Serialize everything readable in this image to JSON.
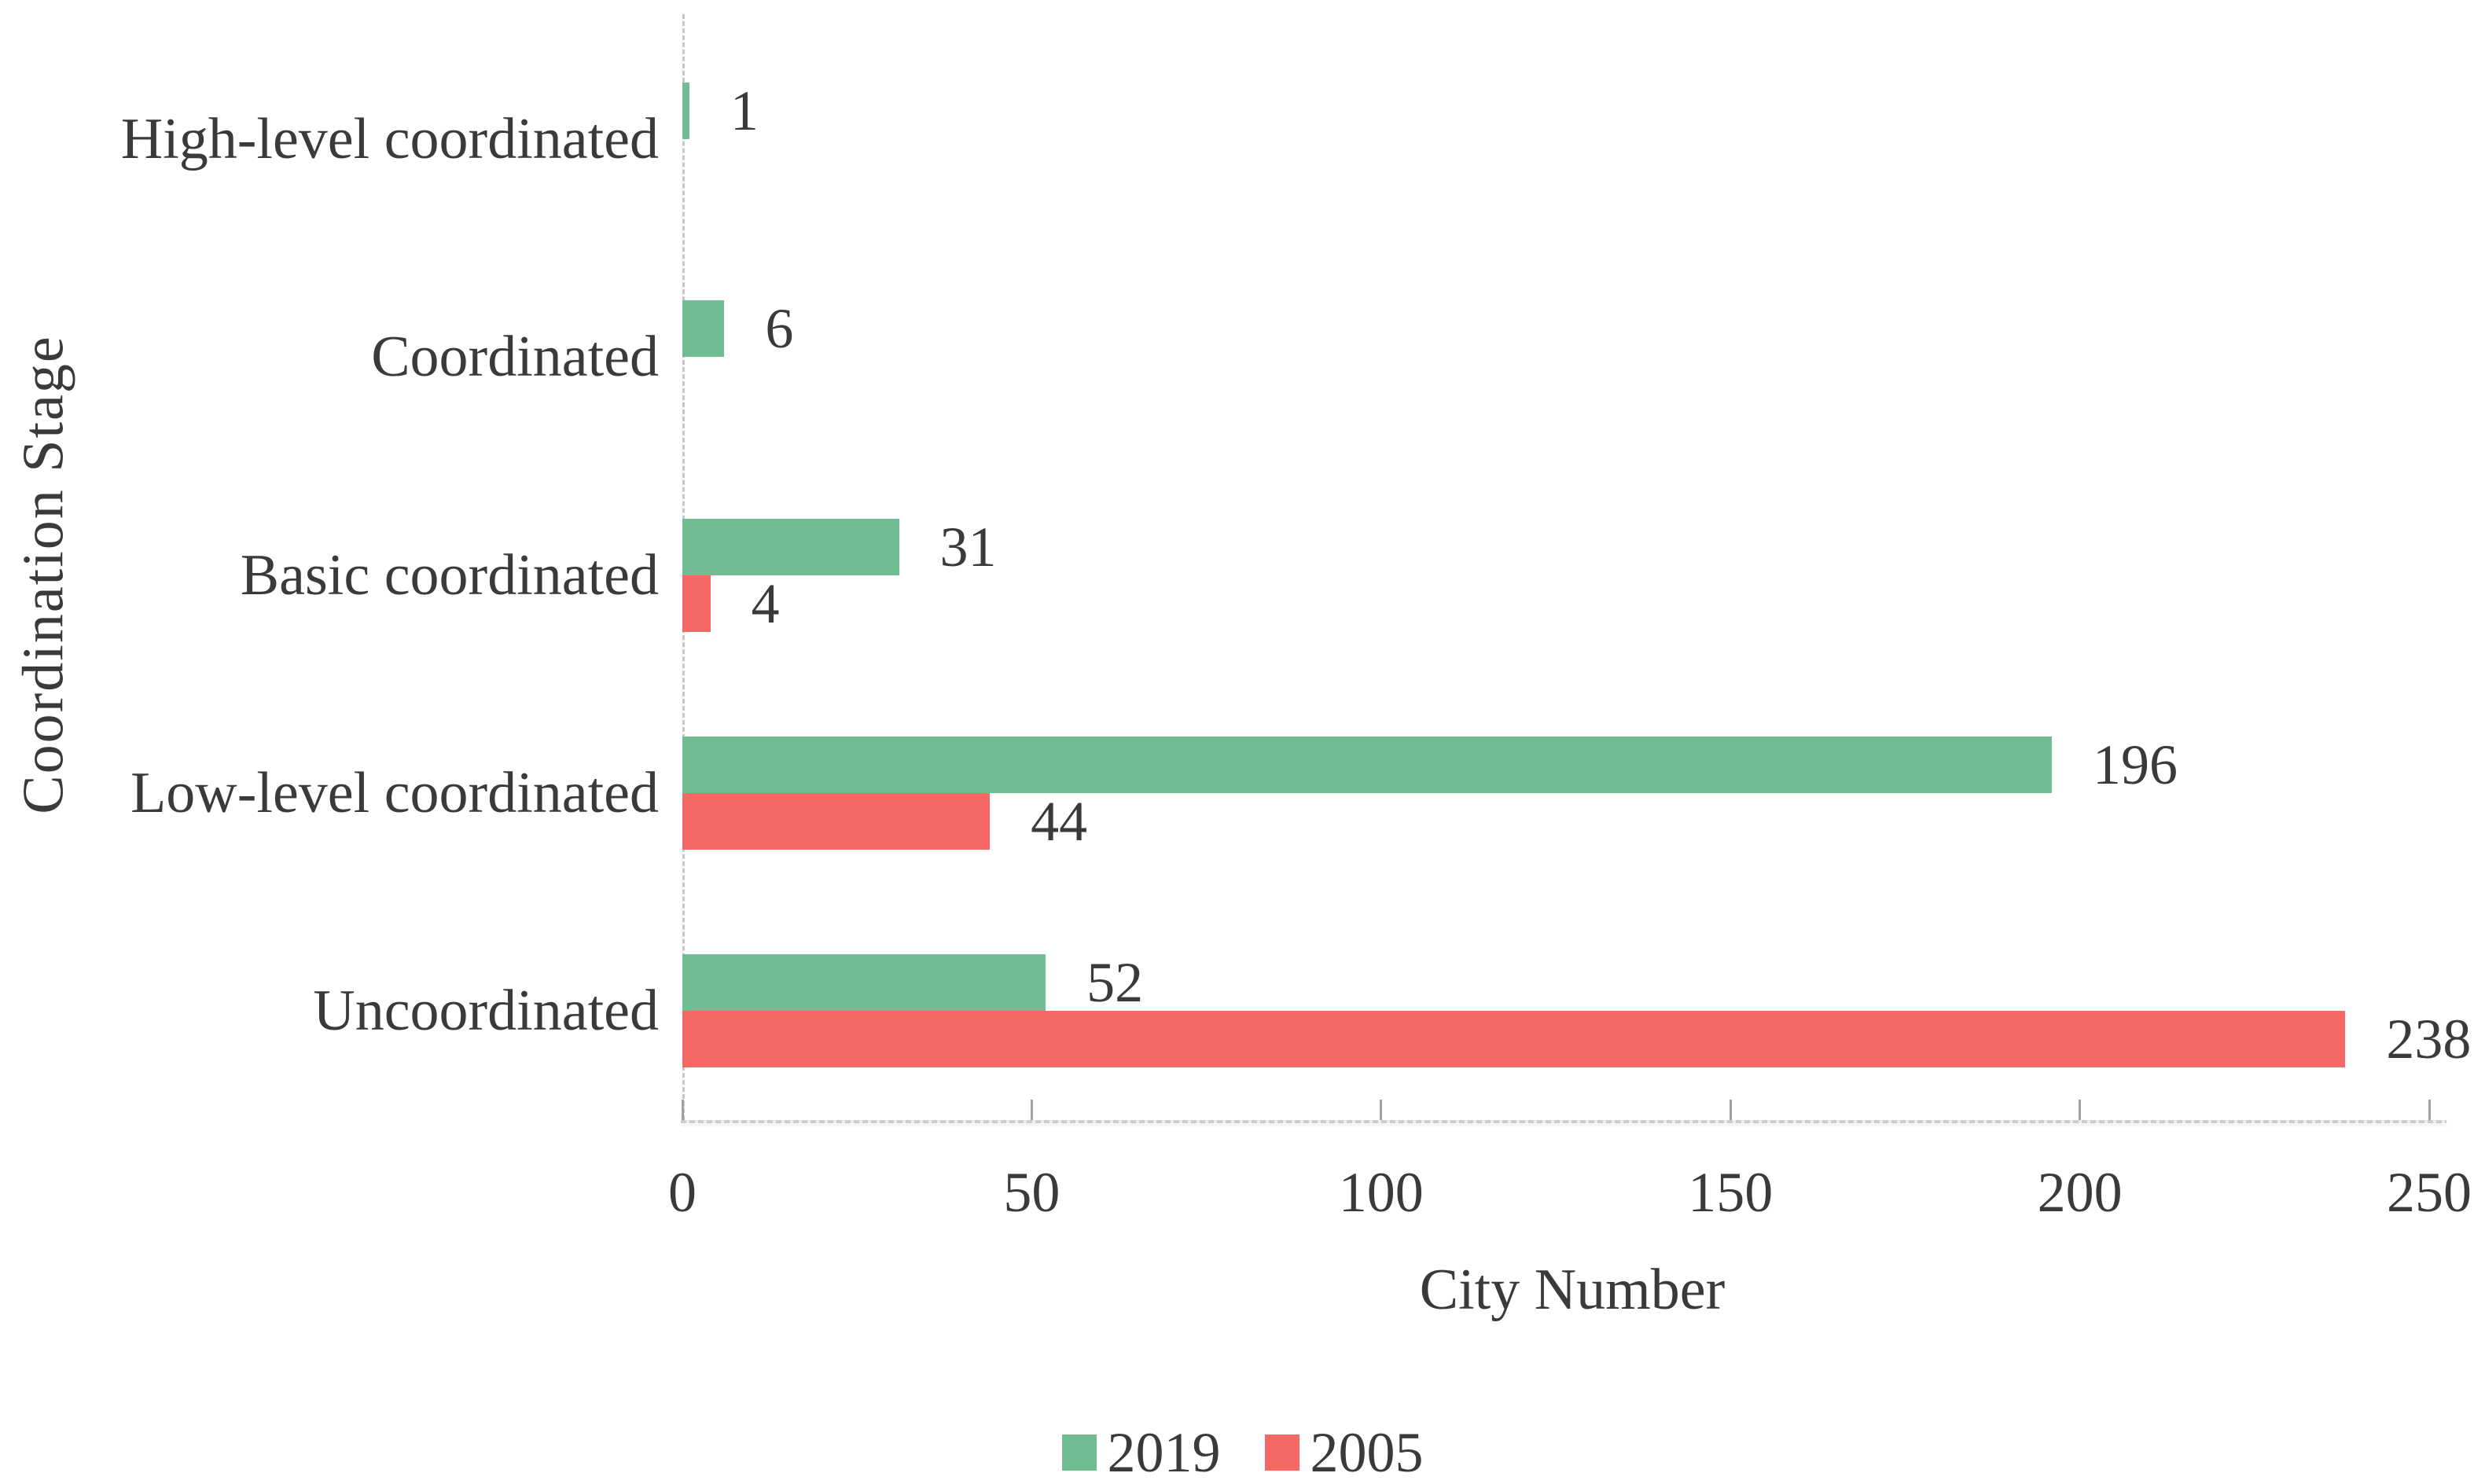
{
  "chart_data": {
    "type": "bar",
    "orientation": "horizontal",
    "title": "",
    "categories": [
      "High-level coordinated",
      "Coordinated",
      "Basic coordinated",
      "Low-level coordinated",
      "Uncoordinated"
    ],
    "series": [
      {
        "name": "2019",
        "color": "#6fbd90",
        "values": [
          1,
          6,
          31,
          196,
          52
        ]
      },
      {
        "name": "2005",
        "color": "#f56863",
        "values": [
          null,
          null,
          4,
          44,
          238
        ]
      }
    ],
    "xlabel": "City Number",
    "ylabel": "Coordination Stage",
    "x_ticks": [
      0,
      50,
      100,
      150,
      200,
      250
    ],
    "xlim": [
      0,
      250
    ],
    "grid": false,
    "data_labels": true,
    "legend_position": "bottom"
  },
  "style_colors": {
    "text": "#3a3a3a",
    "axis_dash": "#c6c6c6",
    "axis_line": "#cdcdcd",
    "tick_mark": "#a0a0a0",
    "background": "#ffffff"
  }
}
